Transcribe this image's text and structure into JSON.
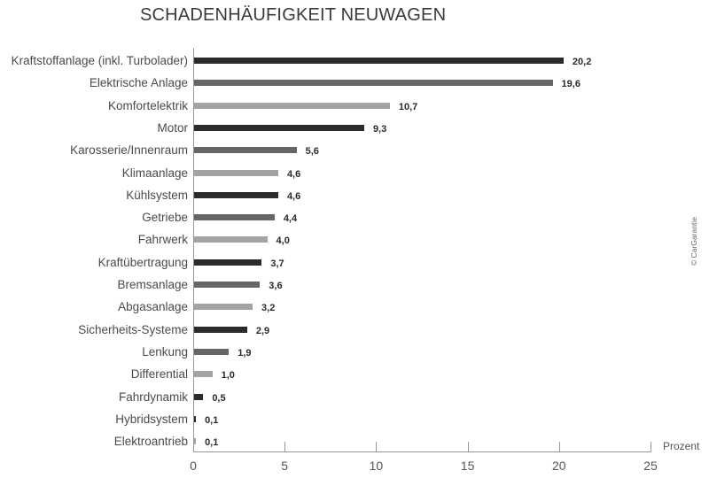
{
  "chart_data": {
    "type": "bar",
    "orientation": "horizontal",
    "title": "SCHADENHÄUFIGKEIT NEUWAGEN",
    "xlabel": "Prozent",
    "ylabel": "",
    "xlim": [
      0,
      25
    ],
    "xticks": [
      "0",
      "5",
      "10",
      "15",
      "20",
      "25"
    ],
    "grid": false,
    "legend": null,
    "source": "© CarGarantie",
    "categories": [
      "Kraftstoffanlage (inkl. Turbolader)",
      "Elektrische Anlage",
      "Komfortelektrik",
      "Motor",
      "Karosserie/Innenraum",
      "Klimaanlage",
      "Kühlsystem",
      "Getriebe",
      "Fahrwerk",
      "Kraftübertragung",
      "Bremsanlage",
      "Abgasanlage",
      "Sicherheits-Systeme",
      "Lenkung",
      "Differential",
      "Fahrdynamik",
      "Hybridsystem",
      "Elektroantrieb"
    ],
    "values": [
      20.2,
      19.6,
      10.7,
      9.3,
      5.6,
      4.6,
      4.6,
      4.4,
      4.0,
      3.7,
      3.6,
      3.2,
      2.9,
      1.9,
      1.0,
      0.5,
      0.1,
      0.1
    ],
    "value_labels": [
      "20,2",
      "19,6",
      "10,7",
      "9,3",
      "5,6",
      "4,6",
      "4,6",
      "4,4",
      "4,0",
      "3,7",
      "3,6",
      "3,2",
      "2,9",
      "1,9",
      "1,0",
      "0,5",
      "0,1",
      "0,1"
    ],
    "bar_colors": [
      "#2b2b2b",
      "#666666",
      "#a3a3a3",
      "#2b2b2b",
      "#666666",
      "#a3a3a3",
      "#2b2b2b",
      "#666666",
      "#a3a3a3",
      "#2b2b2b",
      "#666666",
      "#a3a3a3",
      "#2b2b2b",
      "#666666",
      "#a3a3a3",
      "#2b2b2b",
      "#2b2b2b",
      "#a3a3a3"
    ]
  }
}
